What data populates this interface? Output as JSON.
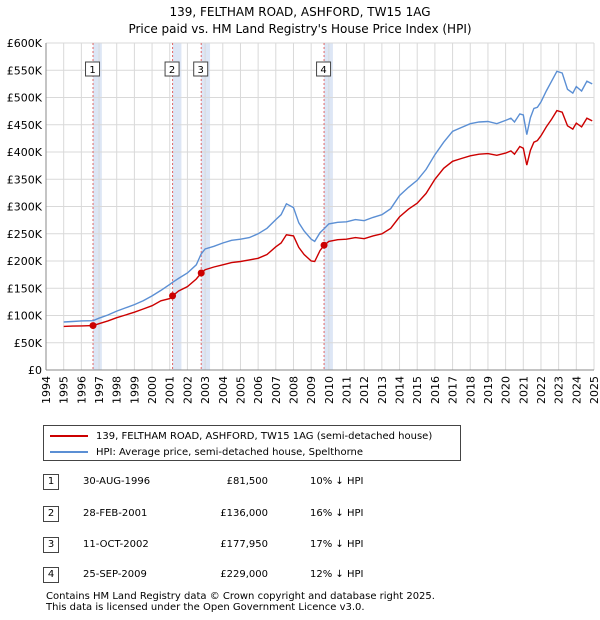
{
  "title_line1": "139, FELTHAM ROAD, ASHFORD, TW15 1AG",
  "title_line2": "Price paid vs. HM Land Registry's House Price Index (HPI)",
  "colors": {
    "property": "#cc0000",
    "hpi": "#5b8fd4",
    "sale_band": "#dde6f5",
    "vline": "#e06666",
    "grid": "#d9d9d9"
  },
  "legend": {
    "property_label": "139, FELTHAM ROAD, ASHFORD, TW15 1AG (semi-detached house)",
    "hpi_label": "HPI: Average price, semi-detached house, Spelthorne"
  },
  "sales": [
    {
      "num": "1",
      "date": "30-AUG-1996",
      "price": "£81,500",
      "hpi_diff": "10% ↓ HPI",
      "year": 1996.66,
      "value": 81500
    },
    {
      "num": "2",
      "date": "28-FEB-2001",
      "price": "£136,000",
      "hpi_diff": "16% ↓ HPI",
      "year": 2001.16,
      "value": 136000
    },
    {
      "num": "3",
      "date": "11-OCT-2002",
      "price": "£177,950",
      "hpi_diff": "17% ↓ HPI",
      "year": 2002.78,
      "value": 177950
    },
    {
      "num": "4",
      "date": "25-SEP-2009",
      "price": "£229,000",
      "hpi_diff": "12% ↓ HPI",
      "year": 2009.73,
      "value": 229000
    }
  ],
  "footer_line1": "Contains HM Land Registry data © Crown copyright and database right 2025.",
  "footer_line2": "This data is licensed under the Open Government Licence v3.0.",
  "chart_data": {
    "type": "line",
    "title": "139, FELTHAM ROAD, ASHFORD, TW15 1AG — Price paid vs. HM Land Registry's House Price Index (HPI)",
    "xlabel": "",
    "ylabel": "",
    "xlim": [
      1994,
      2025
    ],
    "ylim": [
      0,
      600000
    ],
    "y_ticks": [
      0,
      50000,
      100000,
      150000,
      200000,
      250000,
      300000,
      350000,
      400000,
      450000,
      500000,
      550000,
      600000
    ],
    "y_tick_labels": [
      "£0",
      "£50K",
      "£100K",
      "£150K",
      "£200K",
      "£250K",
      "£300K",
      "£350K",
      "£400K",
      "£450K",
      "£500K",
      "£550K",
      "£600K"
    ],
    "x_ticks": [
      "1994",
      "1995",
      "1996",
      "1997",
      "1998",
      "1999",
      "2000",
      "2001",
      "2002",
      "2003",
      "2004",
      "2005",
      "2006",
      "2007",
      "2008",
      "2009",
      "2010",
      "2011",
      "2012",
      "2013",
      "2014",
      "2015",
      "2016",
      "2017",
      "2018",
      "2019",
      "2020",
      "2021",
      "2022",
      "2023",
      "2024",
      "2025"
    ],
    "grid": true,
    "series": [
      {
        "name": "HPI: Average price, semi-detached house, Spelthorne",
        "x": [
          1995.0,
          1995.5,
          1996.0,
          1996.66,
          1997.0,
          1997.5,
          1998.0,
          1998.5,
          1999.0,
          1999.5,
          2000.0,
          2000.5,
          2001.0,
          2001.16,
          2001.5,
          2002.0,
          2002.5,
          2002.78,
          2003.0,
          2003.5,
          2004.0,
          2004.5,
          2005.0,
          2005.5,
          2006.0,
          2006.5,
          2007.0,
          2007.3,
          2007.6,
          2008.0,
          2008.3,
          2008.6,
          2009.0,
          2009.2,
          2009.5,
          2009.73,
          2010.0,
          2010.5,
          2011.0,
          2011.5,
          2012.0,
          2012.5,
          2013.0,
          2013.5,
          2014.0,
          2014.5,
          2015.0,
          2015.5,
          2016.0,
          2016.5,
          2017.0,
          2017.5,
          2018.0,
          2018.5,
          2019.0,
          2019.5,
          2020.0,
          2020.3,
          2020.5,
          2020.8,
          2021.0,
          2021.2,
          2021.4,
          2021.6,
          2021.8,
          2022.0,
          2022.3,
          2022.6,
          2022.9,
          2023.2,
          2023.5,
          2023.8,
          2024.0,
          2024.3,
          2024.6,
          2024.9
        ],
        "values": [
          88000,
          89000,
          90000,
          90500,
          95000,
          101000,
          108000,
          114000,
          120000,
          127000,
          136000,
          146000,
          157000,
          161000,
          168000,
          178000,
          193000,
          213000,
          222000,
          227000,
          233000,
          238000,
          240000,
          243000,
          250000,
          260000,
          276000,
          285000,
          305000,
          298000,
          270000,
          255000,
          240000,
          236000,
          252000,
          259000,
          268000,
          271000,
          272000,
          276000,
          274000,
          280000,
          285000,
          296000,
          320000,
          335000,
          348000,
          368000,
          395000,
          418000,
          438000,
          445000,
          452000,
          455000,
          456000,
          452000,
          458000,
          462000,
          455000,
          470000,
          468000,
          432000,
          463000,
          480000,
          482000,
          492000,
          512000,
          530000,
          548000,
          545000,
          515000,
          508000,
          520000,
          512000,
          530000,
          525000
        ]
      },
      {
        "name": "139, FELTHAM ROAD, ASHFORD, TW15 1AG (semi-detached house)",
        "x": [
          1995.0,
          1995.5,
          1996.0,
          1996.66,
          1997.0,
          1997.5,
          1998.0,
          1998.5,
          1999.0,
          1999.5,
          2000.0,
          2000.5,
          2001.0,
          2001.16,
          2001.5,
          2002.0,
          2002.5,
          2002.78,
          2003.0,
          2003.5,
          2004.0,
          2004.5,
          2005.0,
          2005.5,
          2006.0,
          2006.5,
          2007.0,
          2007.3,
          2007.6,
          2008.0,
          2008.3,
          2008.6,
          2009.0,
          2009.2,
          2009.5,
          2009.73,
          2010.0,
          2010.5,
          2011.0,
          2011.5,
          2012.0,
          2012.5,
          2013.0,
          2013.5,
          2014.0,
          2014.5,
          2015.0,
          2015.5,
          2016.0,
          2016.5,
          2017.0,
          2017.5,
          2018.0,
          2018.5,
          2019.0,
          2019.5,
          2020.0,
          2020.3,
          2020.5,
          2020.8,
          2021.0,
          2021.2,
          2021.4,
          2021.6,
          2021.8,
          2022.0,
          2022.3,
          2022.6,
          2022.9,
          2023.2,
          2023.5,
          2023.8,
          2024.0,
          2024.3,
          2024.6,
          2024.9
        ],
        "values": [
          80000,
          80500,
          81000,
          81500,
          85000,
          90000,
          96000,
          101000,
          106000,
          112000,
          118000,
          127000,
          131000,
          136000,
          145000,
          153000,
          167000,
          177950,
          184000,
          189000,
          193000,
          197000,
          199000,
          202000,
          205000,
          212000,
          226000,
          233000,
          248000,
          246000,
          225000,
          212000,
          200000,
          199000,
          219000,
          229000,
          236000,
          239000,
          240000,
          243000,
          241000,
          246000,
          250000,
          260000,
          281000,
          295000,
          306000,
          324000,
          350000,
          370000,
          383000,
          388000,
          393000,
          396000,
          397000,
          394000,
          398000,
          402000,
          396000,
          410000,
          407000,
          376000,
          403000,
          418000,
          421000,
          430000,
          446000,
          460000,
          476000,
          473000,
          448000,
          442000,
          453000,
          446000,
          462000,
          457000
        ]
      }
    ],
    "annotations": [
      {
        "label": "1",
        "x": 1996.66
      },
      {
        "label": "2",
        "x": 2001.16
      },
      {
        "label": "3",
        "x": 2002.78
      },
      {
        "label": "4",
        "x": 2009.73
      }
    ],
    "legend_position": "below"
  }
}
